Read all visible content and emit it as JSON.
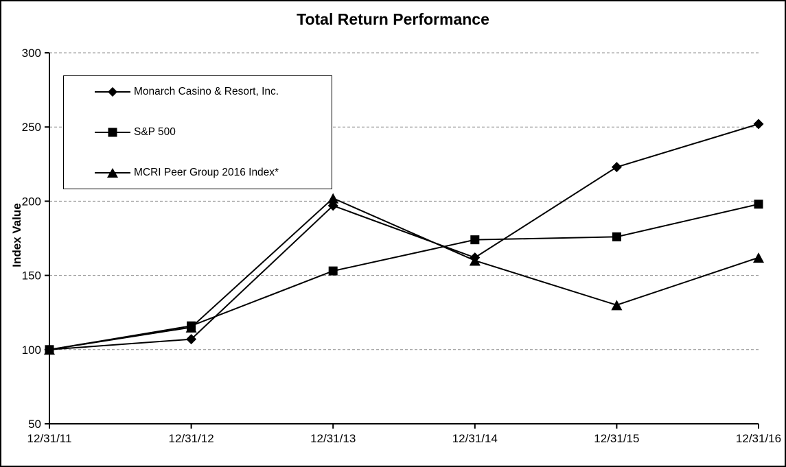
{
  "chart_data": {
    "type": "line",
    "title": "Total Return Performance",
    "xlabel": "",
    "ylabel": "Index Value",
    "categories": [
      "12/31/11",
      "12/31/12",
      "12/31/13",
      "12/31/14",
      "12/31/15",
      "12/31/16"
    ],
    "series": [
      {
        "name": "Monarch Casino & Resort, Inc.",
        "marker": "diamond",
        "values": [
          100,
          107,
          197,
          162,
          223,
          252
        ]
      },
      {
        "name": "S&P 500",
        "marker": "square",
        "values": [
          100,
          116,
          153,
          174,
          176,
          198
        ]
      },
      {
        "name": "MCRI Peer Group 2016 Index*",
        "marker": "triangle",
        "values": [
          100,
          115,
          202,
          160,
          130,
          162
        ]
      }
    ],
    "ylim": [
      50,
      300
    ],
    "yticks": [
      50,
      100,
      150,
      200,
      250,
      300
    ],
    "grid": "horizontal-dashed",
    "legend_position": "upper-left",
    "colors": {
      "line": "#000000",
      "marker": "#000000",
      "grid": "#8c8c8c",
      "axis": "#000000",
      "background": "#ffffff",
      "frame_border": "#000000"
    }
  }
}
